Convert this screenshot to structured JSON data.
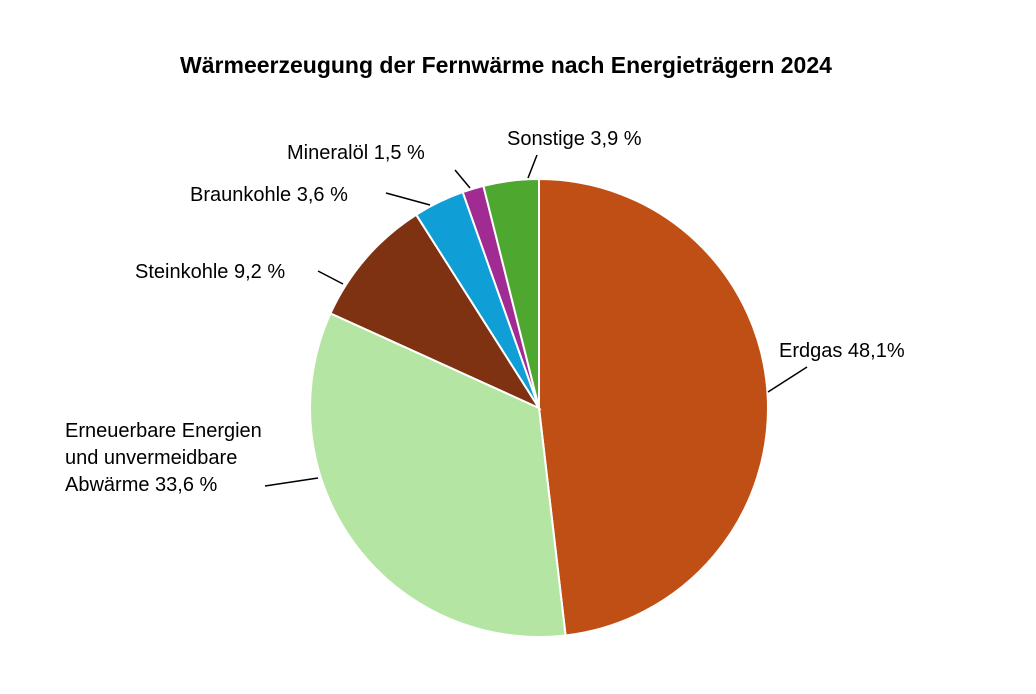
{
  "chart_data": {
    "type": "pie",
    "title": "Wärmeerzeugung der Fernwärme nach Energieträgern 2024",
    "slices": [
      {
        "name": "Erdgas",
        "value": 48.1,
        "label_lines": [
          "Erdgas 48,1%"
        ],
        "color": "#C04F15"
      },
      {
        "name": "Erneuerbare Energien und unvermeidbare Abwärme",
        "value": 33.6,
        "label_lines": [
          "Erneuerbare Energien",
          "und unvermeidbare",
          "Abwärme 33,6 %"
        ],
        "color": "#B4E5A2"
      },
      {
        "name": "Steinkohle",
        "value": 9.2,
        "label_lines": [
          "Steinkohle 9,2 %"
        ],
        "color": "#7E3211"
      },
      {
        "name": "Braunkohle",
        "value": 3.6,
        "label_lines": [
          "Braunkohle 3,6 %"
        ],
        "color": "#0F9ED5"
      },
      {
        "name": "Mineralöl",
        "value": 1.5,
        "label_lines": [
          "Mineralöl 1,5 %"
        ],
        "color": "#A02B93"
      },
      {
        "name": "Sonstige",
        "value": 3.9,
        "label_lines": [
          "Sonstige 3,9 %"
        ],
        "color": "#4EA72E"
      }
    ]
  }
}
